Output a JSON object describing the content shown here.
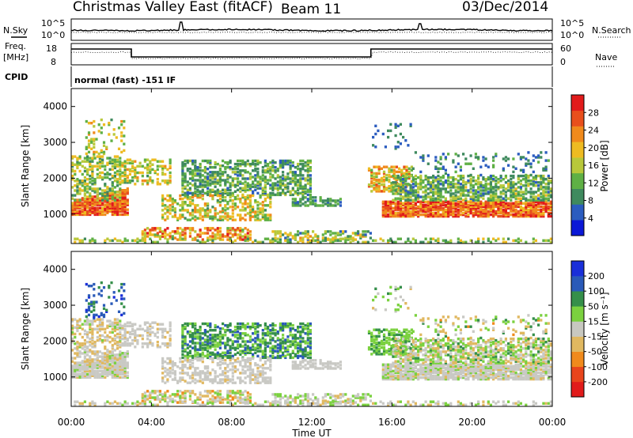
{
  "header": {
    "station": "Christmas Valley East (fitACF)",
    "beam": "Beam 11",
    "date": "03/Dec/2014"
  },
  "top_panels": {
    "nsky_label": "N.Sky",
    "nsearch_label": "N.Search",
    "noise_ticks": [
      "10^5",
      "10^0"
    ],
    "freq_label_line1": "Freq.",
    "freq_label_line2": "[MHz]",
    "freq_ticks": [
      "18",
      "8"
    ],
    "nave_label": "Nave",
    "nave_ticks": [
      "60",
      "0"
    ],
    "cpid_label": "CPID",
    "cpid_text": "normal (fast) -151 IF"
  },
  "chart_data": [
    {
      "type": "heatmap",
      "name": "power",
      "ylabel": "Slant Range [km]",
      "y_ticks": [
        1000,
        2000,
        3000,
        4000
      ],
      "ylim": [
        180,
        4500
      ],
      "x_ticks": [
        "00:00",
        "04:00",
        "08:00",
        "12:00",
        "16:00",
        "20:00",
        "00:00"
      ],
      "xlim_hours": [
        0,
        24
      ],
      "colorbar": {
        "label": "Power [dB]",
        "ticks": [
          4,
          8,
          12,
          16,
          20,
          24,
          28
        ],
        "range": [
          0,
          32
        ],
        "colors": [
          "#0b18d6",
          "#2b5cbf",
          "#3f8a5e",
          "#5fb045",
          "#b8c83a",
          "#eebb22",
          "#f08a1c",
          "#e84f1c",
          "#e11b1b"
        ]
      }
    },
    {
      "type": "heatmap",
      "name": "velocity",
      "ylabel": "Slant Range [km]",
      "y_ticks": [
        1000,
        2000,
        3000,
        4000
      ],
      "ylim": [
        180,
        4500
      ],
      "x_ticks": [
        "00:00",
        "04:00",
        "08:00",
        "12:00",
        "16:00",
        "20:00",
        "00:00"
      ],
      "xlim_hours": [
        0,
        24
      ],
      "xlabel": "Time UT",
      "colorbar": {
        "label": "Velocity [m s⁻¹]",
        "ticks": [
          "200",
          "100",
          "50",
          "15",
          "-15",
          "-50",
          "-100",
          "-200"
        ],
        "colors": [
          "#1a2fd9",
          "#2a5ab8",
          "#358f4a",
          "#7bd13f",
          "#c8c8c0",
          "#e0b860",
          "#f08a1c",
          "#e8451c",
          "#e11b1b"
        ]
      }
    }
  ],
  "colors": {
    "ground": "#c9c9c4",
    "strong": "#e11b1b"
  }
}
